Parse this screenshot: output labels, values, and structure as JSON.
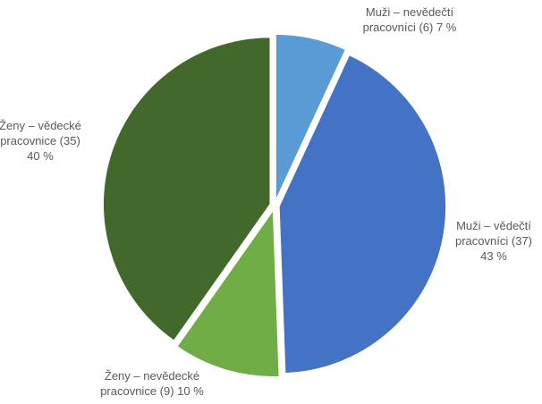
{
  "chart_data": {
    "type": "pie",
    "title": "",
    "legend": "none",
    "slices": [
      {
        "label_lines": [
          "Muži – nevědečtí",
          "pracovníci (6) 7 %"
        ],
        "category": "Muži – nevědečtí pracovníci",
        "count": 6,
        "percent": 7,
        "color": "#5b9bd5"
      },
      {
        "label_lines": [
          "Muži – vědečtí",
          "pracovníci (37)",
          "43 %"
        ],
        "category": "Muži – vědečtí pracovníci",
        "count": 37,
        "percent": 43,
        "color": "#4472c4"
      },
      {
        "label_lines": [
          "Ženy – nevědecké",
          "pracovnice (9) 10 %"
        ],
        "category": "Ženy – nevědecké pracovnice",
        "count": 9,
        "percent": 10,
        "color": "#70ad47"
      },
      {
        "label_lines": [
          "Ženy – vědecké",
          "pracovnice (35)",
          "40 %"
        ],
        "category": "Ženy – vědecké pracovnice",
        "count": 35,
        "percent": 40,
        "color": "#43682b"
      }
    ]
  }
}
